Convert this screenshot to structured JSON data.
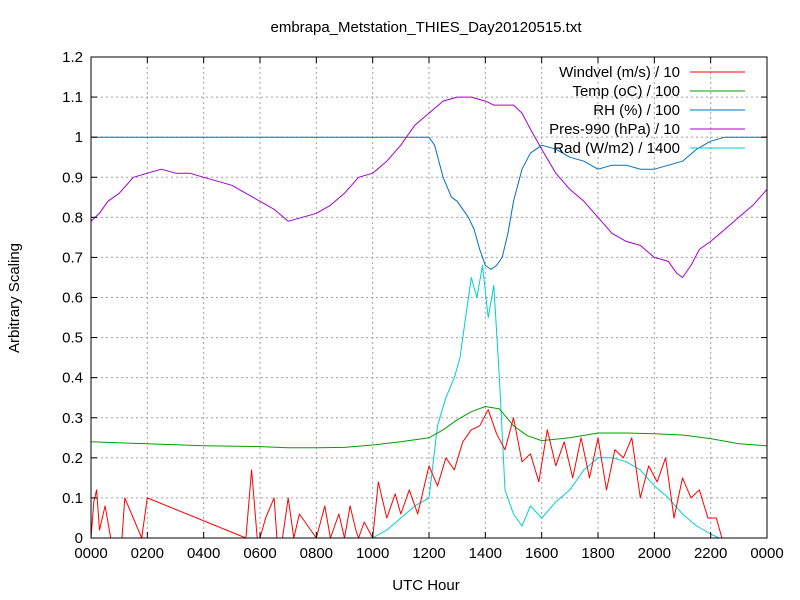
{
  "chart_data": {
    "type": "line",
    "title": "embrapa_Metstation_THIES_Day20120515.txt",
    "xlabel": "UTC Hour",
    "ylabel": "Arbitrary Scaling",
    "xlim": [
      0,
      24
    ],
    "ylim": [
      0,
      1.2
    ],
    "grid": true,
    "legend_position": "top-right",
    "x_ticks": [
      "0000",
      "0200",
      "0400",
      "0600",
      "0800",
      "1000",
      "1200",
      "1400",
      "1600",
      "1800",
      "2000",
      "2200",
      "0000"
    ],
    "y_ticks": [
      "0",
      "0.1",
      "0.2",
      "0.3",
      "0.4",
      "0.5",
      "0.6",
      "0.7",
      "0.8",
      "0.9",
      "1",
      "1.1",
      "1.2"
    ],
    "series": [
      {
        "name": "Windvel (m/s) / 10",
        "color": "#ff0000",
        "x": [
          0,
          0.1,
          0.2,
          0.3,
          0.5,
          0.7,
          1.1,
          1.2,
          1.8,
          2.0,
          5.5,
          5.7,
          5.9,
          6.0,
          6.2,
          6.5,
          6.6,
          6.8,
          7.0,
          7.2,
          7.4,
          8.0,
          8.3,
          8.5,
          8.8,
          9.0,
          9.2,
          9.4,
          9.5,
          9.7,
          10.0,
          10.2,
          10.5,
          10.8,
          11.0,
          11.3,
          11.6,
          12.0,
          12.3,
          12.6,
          12.9,
          13.2,
          13.5,
          13.8,
          14.1,
          14.4,
          14.7,
          15.0,
          15.3,
          15.6,
          15.9,
          16.2,
          16.5,
          16.8,
          17.1,
          17.4,
          17.7,
          18.0,
          18.3,
          18.6,
          18.9,
          19.2,
          19.5,
          19.8,
          20.1,
          20.4,
          20.7,
          21.0,
          21.3,
          21.6,
          21.9,
          22.2,
          22.4
        ],
        "y": [
          0.0,
          0.09,
          0.12,
          0.02,
          0.08,
          0.0,
          0.0,
          0.1,
          0.0,
          0.1,
          0.0,
          0.17,
          0.0,
          0.0,
          0.05,
          0.1,
          0.0,
          0.0,
          0.1,
          0.0,
          0.06,
          0.0,
          0.08,
          0.0,
          0.06,
          0.0,
          0.08,
          0.02,
          0.0,
          0.04,
          0.0,
          0.14,
          0.05,
          0.11,
          0.06,
          0.12,
          0.06,
          0.18,
          0.13,
          0.2,
          0.17,
          0.24,
          0.27,
          0.28,
          0.32,
          0.26,
          0.22,
          0.3,
          0.19,
          0.21,
          0.14,
          0.27,
          0.18,
          0.24,
          0.15,
          0.25,
          0.15,
          0.25,
          0.12,
          0.22,
          0.2,
          0.25,
          0.1,
          0.18,
          0.14,
          0.2,
          0.05,
          0.15,
          0.1,
          0.12,
          0.05,
          0.05,
          0.0
        ]
      },
      {
        "name": "Temp (oC) / 100",
        "color": "#00a000",
        "x": [
          0,
          2,
          4,
          6,
          7,
          8,
          9,
          10,
          11,
          12,
          12.5,
          13,
          13.5,
          14,
          14.5,
          15,
          15.5,
          16,
          17,
          18,
          19,
          20,
          21,
          22,
          23,
          24
        ],
        "y": [
          0.24,
          0.235,
          0.23,
          0.228,
          0.225,
          0.225,
          0.226,
          0.232,
          0.24,
          0.25,
          0.27,
          0.295,
          0.315,
          0.328,
          0.322,
          0.28,
          0.255,
          0.243,
          0.25,
          0.262,
          0.262,
          0.26,
          0.257,
          0.248,
          0.235,
          0.23
        ]
      },
      {
        "name": "RH (%) / 100",
        "color": "#0070c0",
        "x": [
          0,
          2,
          4,
          6,
          8,
          10,
          12,
          12.2,
          12.5,
          12.8,
          13.0,
          13.2,
          13.4,
          13.6,
          13.8,
          14.0,
          14.2,
          14.4,
          14.6,
          14.8,
          15.0,
          15.3,
          15.6,
          16.0,
          16.5,
          17.0,
          17.5,
          18.0,
          18.5,
          19.0,
          19.5,
          20.0,
          20.5,
          21.0,
          21.5,
          22.0,
          22.5,
          23,
          24
        ],
        "y": [
          1.0,
          1.0,
          1.0,
          1.0,
          1.0,
          1.0,
          1.0,
          0.98,
          0.9,
          0.85,
          0.84,
          0.82,
          0.8,
          0.77,
          0.72,
          0.68,
          0.67,
          0.68,
          0.7,
          0.76,
          0.84,
          0.92,
          0.96,
          0.98,
          0.97,
          0.95,
          0.94,
          0.92,
          0.93,
          0.93,
          0.92,
          0.92,
          0.93,
          0.94,
          0.97,
          0.99,
          1.0,
          1.0,
          1.0
        ]
      },
      {
        "name": "Pres-990 (hPa) / 10",
        "color": "#a000d0",
        "x": [
          0,
          0.3,
          0.6,
          1.0,
          1.5,
          2.0,
          2.5,
          3.0,
          3.5,
          4.0,
          4.5,
          5.0,
          5.5,
          6.0,
          6.5,
          7.0,
          7.5,
          8.0,
          8.5,
          9.0,
          9.5,
          10.0,
          10.5,
          11.0,
          11.5,
          12.0,
          12.5,
          13.0,
          13.5,
          14.0,
          14.3,
          14.6,
          15.0,
          15.3,
          15.6,
          16.0,
          16.5,
          17.0,
          17.5,
          18.0,
          18.5,
          19.0,
          19.5,
          20.0,
          20.5,
          20.8,
          21.0,
          21.3,
          21.6,
          22.0,
          22.5,
          23.0,
          23.5,
          24.0
        ],
        "y": [
          0.79,
          0.81,
          0.84,
          0.86,
          0.9,
          0.91,
          0.92,
          0.91,
          0.91,
          0.9,
          0.89,
          0.88,
          0.86,
          0.84,
          0.82,
          0.79,
          0.8,
          0.81,
          0.83,
          0.86,
          0.9,
          0.91,
          0.94,
          0.98,
          1.03,
          1.06,
          1.09,
          1.1,
          1.1,
          1.09,
          1.08,
          1.08,
          1.08,
          1.06,
          1.02,
          0.97,
          0.91,
          0.87,
          0.84,
          0.8,
          0.76,
          0.74,
          0.73,
          0.7,
          0.69,
          0.66,
          0.65,
          0.68,
          0.72,
          0.74,
          0.77,
          0.8,
          0.83,
          0.87
        ]
      },
      {
        "name": "Rad (W/m2) / 1400",
        "color": "#00d0d0",
        "x": [
          0,
          10,
          10.5,
          11,
          11.5,
          12.0,
          12.3,
          12.6,
          12.9,
          13.1,
          13.3,
          13.5,
          13.7,
          13.9,
          14.1,
          14.3,
          14.5,
          14.7,
          15.0,
          15.3,
          15.6,
          16.0,
          16.5,
          17.0,
          17.5,
          18.0,
          18.5,
          19.0,
          19.5,
          20.0,
          20.5,
          21.0,
          21.5,
          22.0,
          22.3,
          24
        ],
        "y": [
          0,
          0,
          0.02,
          0.05,
          0.08,
          0.1,
          0.28,
          0.35,
          0.4,
          0.45,
          0.55,
          0.65,
          0.6,
          0.68,
          0.55,
          0.63,
          0.4,
          0.12,
          0.06,
          0.03,
          0.08,
          0.05,
          0.09,
          0.12,
          0.17,
          0.2,
          0.2,
          0.19,
          0.17,
          0.13,
          0.1,
          0.06,
          0.03,
          0.01,
          0.0,
          0.0
        ]
      }
    ]
  }
}
